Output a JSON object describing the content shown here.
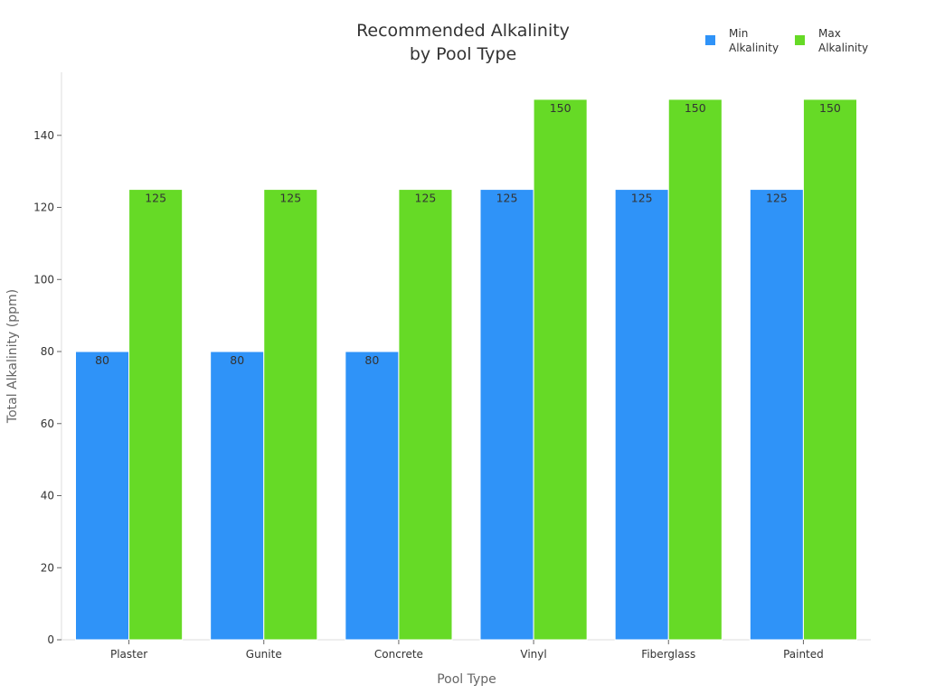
{
  "chart_data": {
    "type": "bar",
    "title": [
      "Recommended Alkalinity",
      "by Pool Type"
    ],
    "xlabel": "Pool Type",
    "ylabel": "Total Alkalinity (ppm)",
    "categories": [
      "Plaster",
      "Gunite",
      "Concrete",
      "Vinyl",
      "Fiberglass",
      "Painted"
    ],
    "series": [
      {
        "name": [
          "Min",
          "Alkalinity"
        ],
        "color": "#2F93F8",
        "values": [
          80,
          80,
          80,
          125,
          125,
          125
        ]
      },
      {
        "name": [
          "Max",
          "Alkalinity"
        ],
        "color": "#66DA26",
        "values": [
          125,
          125,
          125,
          150,
          150,
          150
        ]
      }
    ],
    "ylim": [
      0,
      157.5
    ],
    "yticks": [
      0,
      20,
      40,
      60,
      80,
      100,
      120,
      140
    ],
    "grid": false,
    "legend": "top-right",
    "data_labels": true
  }
}
